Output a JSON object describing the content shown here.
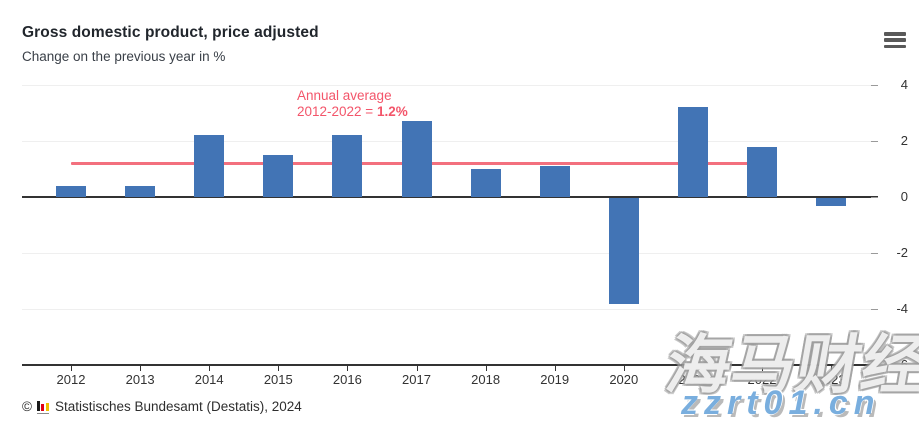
{
  "header": {
    "title": "Gross domestic product, price adjusted",
    "subtitle": "Change on the previous year in %",
    "menu_icon": "hamburger-menu"
  },
  "chart_data": {
    "type": "bar",
    "title": "Gross domestic product, price adjusted",
    "subtitle": "Change on the previous year in %",
    "categories": [
      "2012",
      "2013",
      "2014",
      "2015",
      "2016",
      "2017",
      "2018",
      "2019",
      "2020",
      "2021",
      "2022",
      "2023"
    ],
    "values": [
      0.4,
      0.4,
      2.2,
      1.5,
      2.2,
      2.7,
      1.0,
      1.1,
      -3.8,
      3.2,
      1.8,
      -0.3
    ],
    "xlabel": "",
    "ylabel": "",
    "ylim": [
      -6,
      4
    ],
    "yticks": [
      4,
      2,
      0,
      -2,
      -4,
      -6
    ],
    "grid": true,
    "legend": false,
    "bar_color": "#4274b5",
    "average_line": {
      "value": 1.2,
      "span": [
        "2012",
        "2022"
      ],
      "color": "#f3707e",
      "label_line1": "Annual average",
      "label_line2_prefix": "2012-2022 = ",
      "label_value": "1.2%",
      "label_color": "#f3556a"
    }
  },
  "footer": {
    "copyright_symbol": "©",
    "source": "Statistisches Bundesamt (Destatis), 2024",
    "logo_bar_colors": [
      "#1a1a1a",
      "#e10014",
      "#f0bf00"
    ],
    "logo_bar_heights": [
      10,
      7,
      8
    ]
  },
  "watermark": {
    "cjk_text": "海马财经",
    "url_text": "zzrt01.cn",
    "url_color": "#79aede"
  }
}
